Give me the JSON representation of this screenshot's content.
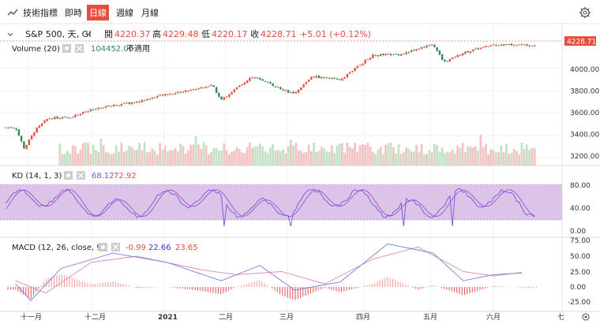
{
  "toolbar": {
    "indicator_label": "技術指標",
    "tabs": [
      {
        "label": "即時",
        "active": false
      },
      {
        "label": "日線",
        "active": true
      },
      {
        "label": "週線",
        "active": false
      },
      {
        "label": "月線",
        "active": false
      }
    ],
    "accent": "#e74c3c"
  },
  "legend": {
    "symbol": "S&P 500, 天, GI",
    "open_label": "開",
    "open": "4220.37",
    "high_label": "高",
    "high": "4229.48",
    "low_label": "低",
    "low": "4220.17",
    "close_label": "收",
    "close": "4228.71",
    "change": "+5.01 (+0.12%)"
  },
  "volume_legend": {
    "name": "Volume (20)",
    "value": "104452.00",
    "extra": "不適用"
  },
  "kd_legend": {
    "name": "KD (14, 1, 3)",
    "k": "68.12",
    "d": "72.92"
  },
  "macd_legend": {
    "name": "MACD (12, 26, close, 9)",
    "hist": "-0.99",
    "macd": "22.66",
    "signal": "23.65"
  },
  "x_axis": {
    "labels": [
      "十一月",
      "十二月",
      "2021",
      "二月",
      "三月",
      "四月",
      "五月",
      "六月",
      "七"
    ]
  },
  "colors": {
    "up": "#e74c3c",
    "down": "#2e8b57",
    "k": "#6b5cd6",
    "d": "#b04ad0",
    "kd_band": "#dcc3e8",
    "vol_up": "#f3c4c4",
    "vol_down": "#c4e3c6"
  },
  "chart_data": [
    {
      "type": "candlestick",
      "title": "S&P 500, 天, GI",
      "price_axis": {
        "ticks": [
          "4228.71",
          "4000.00",
          "3800.00",
          "3600.00",
          "3400.00",
          "3200.00"
        ],
        "ylim": [
          3150,
          4300
        ]
      },
      "last_price": 4228.71,
      "close_points": [
        {
          "x": "2020-10-26",
          "y": 3465
        },
        {
          "x": "2020-10-30",
          "y": 3270
        },
        {
          "x": "2020-11-04",
          "y": 3440
        },
        {
          "x": "2020-11-10",
          "y": 3550
        },
        {
          "x": "2020-11-20",
          "y": 3560
        },
        {
          "x": "2020-11-30",
          "y": 3625
        },
        {
          "x": "2020-12-10",
          "y": 3670
        },
        {
          "x": "2020-12-21",
          "y": 3700
        },
        {
          "x": "2020-12-31",
          "y": 3755
        },
        {
          "x": "2021-01-12",
          "y": 3800
        },
        {
          "x": "2021-01-25",
          "y": 3855
        },
        {
          "x": "2021-01-29",
          "y": 3715
        },
        {
          "x": "2021-02-12",
          "y": 3935
        },
        {
          "x": "2021-02-25",
          "y": 3830
        },
        {
          "x": "2021-03-04",
          "y": 3770
        },
        {
          "x": "2021-03-12",
          "y": 3940
        },
        {
          "x": "2021-03-25",
          "y": 3905
        },
        {
          "x": "2021-04-09",
          "y": 4130
        },
        {
          "x": "2021-04-22",
          "y": 4140
        },
        {
          "x": "2021-05-07",
          "y": 4235
        },
        {
          "x": "2021-05-12",
          "y": 4065
        },
        {
          "x": "2021-05-21",
          "y": 4155
        },
        {
          "x": "2021-06-04",
          "y": 4230
        },
        {
          "x": "2021-06-17",
          "y": 4228.71
        }
      ]
    },
    {
      "type": "bar",
      "title": "Volume (20)",
      "last_value": 104452.0
    },
    {
      "type": "line",
      "title": "KD (14, 1, 3)",
      "y_ticks": [
        "80.00",
        "40.00",
        "0.00"
      ],
      "ylim": [
        0,
        100
      ],
      "band": [
        20,
        80
      ],
      "series": [
        {
          "name": "K",
          "last": 68.12
        },
        {
          "name": "D",
          "last": 72.92
        }
      ]
    },
    {
      "type": "line",
      "title": "MACD (12, 26, close, 9)",
      "y_ticks": [
        "75.00",
        "50.00",
        "25.00",
        "0.00",
        "-25.00"
      ],
      "ylim": [
        -30,
        80
      ],
      "series": [
        {
          "name": "MACD",
          "last": 22.66,
          "points": [
            {
              "x": "2020-10-26",
              "y": 5
            },
            {
              "x": "2020-11-02",
              "y": -22
            },
            {
              "x": "2020-11-16",
              "y": 30
            },
            {
              "x": "2020-12-10",
              "y": 55
            },
            {
              "x": "2021-01-04",
              "y": 40
            },
            {
              "x": "2021-01-29",
              "y": 10
            },
            {
              "x": "2021-02-16",
              "y": 35
            },
            {
              "x": "2021-03-04",
              "y": -5
            },
            {
              "x": "2021-03-25",
              "y": 8
            },
            {
              "x": "2021-04-16",
              "y": 70
            },
            {
              "x": "2021-05-07",
              "y": 55
            },
            {
              "x": "2021-05-21",
              "y": 10
            },
            {
              "x": "2021-06-04",
              "y": 20
            },
            {
              "x": "2021-06-17",
              "y": 22.66
            }
          ]
        },
        {
          "name": "Signal",
          "last": 23.65,
          "points": [
            {
              "x": "2020-10-26",
              "y": 10
            },
            {
              "x": "2020-11-09",
              "y": -10
            },
            {
              "x": "2020-11-30",
              "y": 40
            },
            {
              "x": "2020-12-21",
              "y": 50
            },
            {
              "x": "2021-01-20",
              "y": 28
            },
            {
              "x": "2021-02-05",
              "y": 20
            },
            {
              "x": "2021-02-26",
              "y": 25
            },
            {
              "x": "2021-03-18",
              "y": 5
            },
            {
              "x": "2021-04-09",
              "y": 45
            },
            {
              "x": "2021-04-30",
              "y": 65
            },
            {
              "x": "2021-05-21",
              "y": 25
            },
            {
              "x": "2021-06-04",
              "y": 18
            },
            {
              "x": "2021-06-17",
              "y": 23.65
            }
          ]
        }
      ],
      "histogram_last": -0.99
    }
  ]
}
